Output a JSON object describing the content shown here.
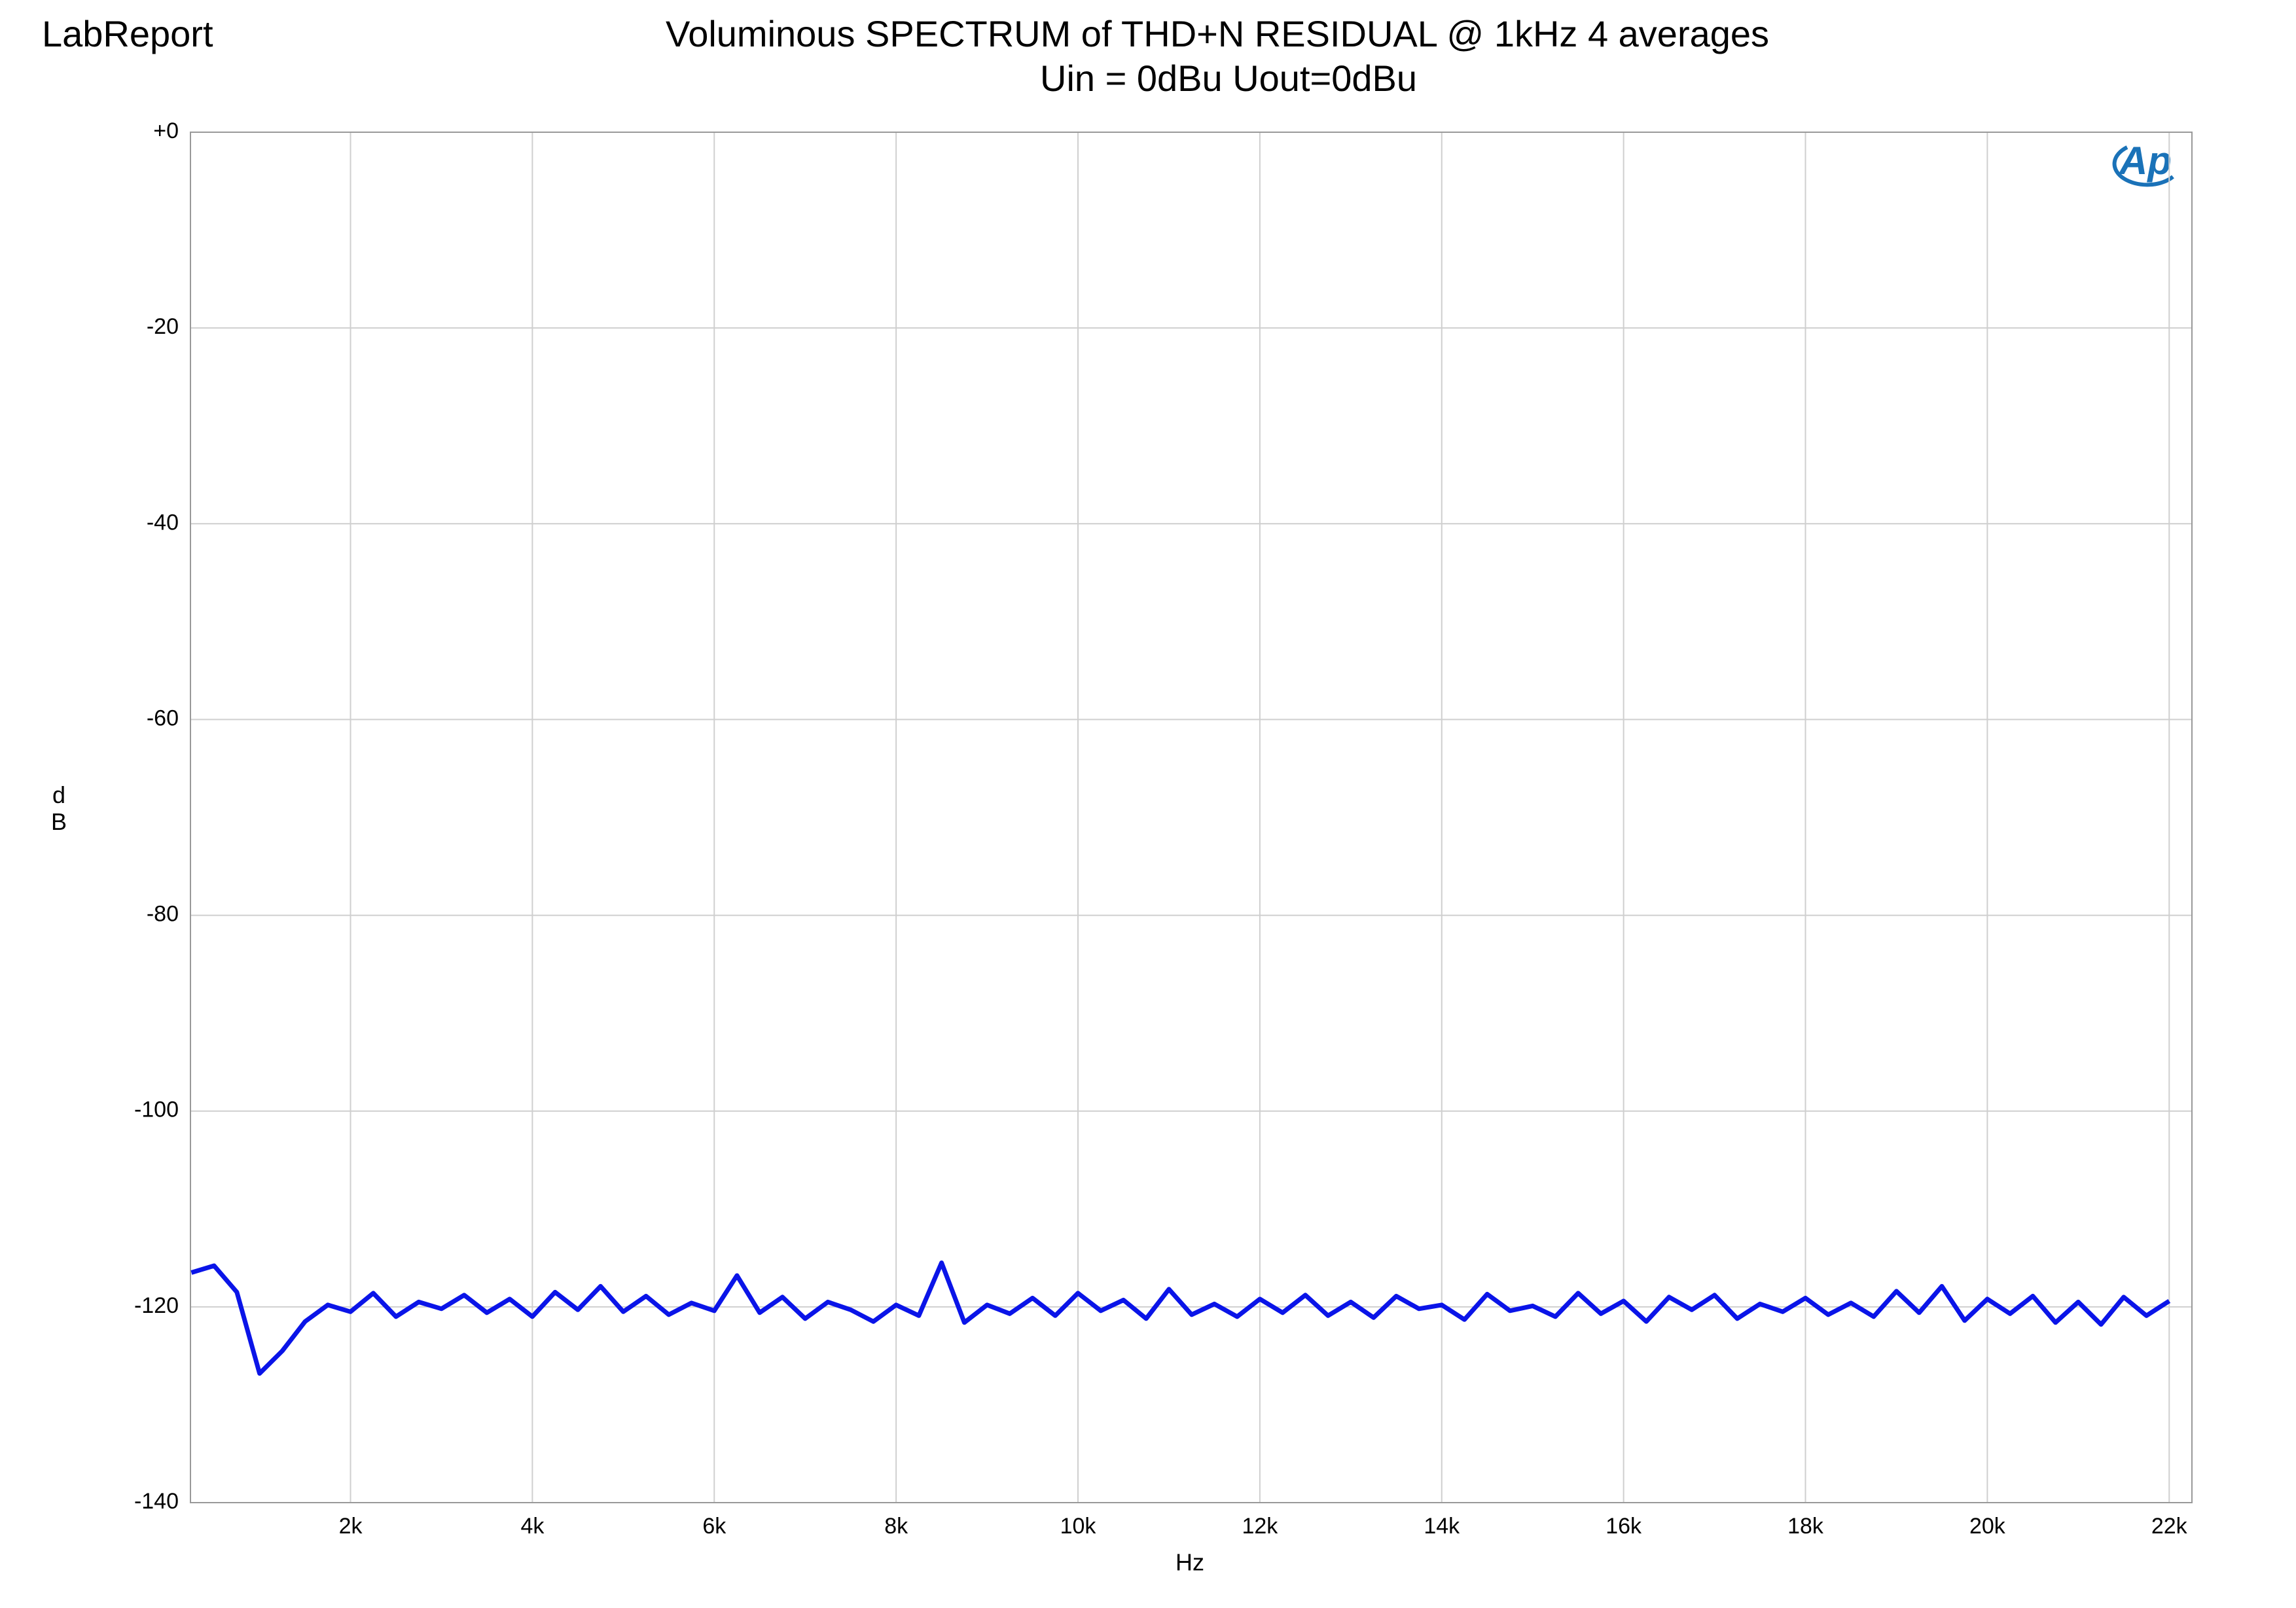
{
  "chart_data": {
    "type": "line",
    "brand": "LabReport",
    "logo": "Ap",
    "title": "Voluminous SPECTRUM of THD+N RESIDUAL  @ 1kHz 4 averages",
    "subtitle": "Uin = 0dBu Uout=0dBu",
    "xlabel": "Hz",
    "ylabel": "dB",
    "xlim": [
      240,
      22250
    ],
    "ylim": [
      -140,
      0
    ],
    "xticks": [
      {
        "value": 2000,
        "label": "2k"
      },
      {
        "value": 4000,
        "label": "4k"
      },
      {
        "value": 6000,
        "label": "6k"
      },
      {
        "value": 8000,
        "label": "8k"
      },
      {
        "value": 10000,
        "label": "10k"
      },
      {
        "value": 12000,
        "label": "12k"
      },
      {
        "value": 14000,
        "label": "14k"
      },
      {
        "value": 16000,
        "label": "16k"
      },
      {
        "value": 18000,
        "label": "18k"
      },
      {
        "value": 20000,
        "label": "20k"
      },
      {
        "value": 22000,
        "label": "22k"
      }
    ],
    "yticks": [
      {
        "value": 0,
        "label": "+0"
      },
      -20,
      -40,
      -60,
      -80,
      -100,
      -120,
      -140
    ],
    "grid": true,
    "x": [
      250,
      500,
      750,
      1000,
      1250,
      1500,
      1750,
      2000,
      2250,
      2500,
      2750,
      3000,
      3250,
      3500,
      3750,
      4000,
      4250,
      4500,
      4750,
      5000,
      5250,
      5500,
      5750,
      6000,
      6250,
      6500,
      6750,
      7000,
      7250,
      7500,
      7750,
      8000,
      8250,
      8500,
      8750,
      9000,
      9250,
      9500,
      9750,
      10000,
      10250,
      10500,
      10750,
      11000,
      11250,
      11500,
      11750,
      12000,
      12250,
      12500,
      12750,
      13000,
      13250,
      13500,
      13750,
      14000,
      14250,
      14500,
      14750,
      15000,
      15250,
      15500,
      15750,
      16000,
      16250,
      16500,
      16750,
      17000,
      17250,
      17500,
      17750,
      18000,
      18250,
      18500,
      18750,
      19000,
      19250,
      19500,
      19750,
      20000,
      20250,
      20500,
      20750,
      21000,
      21250,
      21500,
      21750,
      22000
    ],
    "series": [
      {
        "name": "THD+N residual",
        "color": "#0a14e8",
        "values": [
          -116.5,
          -115.8,
          -118.5,
          -126.8,
          -124.5,
          -121.5,
          -119.8,
          -120.5,
          -118.6,
          -121.0,
          -119.5,
          -120.2,
          -118.8,
          -120.6,
          -119.2,
          -121.0,
          -118.5,
          -120.3,
          -117.9,
          -120.5,
          -118.9,
          -120.8,
          -119.6,
          -120.4,
          -116.8,
          -120.6,
          -119.0,
          -121.2,
          -119.5,
          -120.3,
          -121.5,
          -119.8,
          -120.9,
          -115.5,
          -121.6,
          -119.8,
          -120.7,
          -119.1,
          -120.9,
          -118.6,
          -120.4,
          -119.3,
          -121.2,
          -118.2,
          -120.8,
          -119.7,
          -121.0,
          -119.2,
          -120.6,
          -118.8,
          -120.9,
          -119.5,
          -121.1,
          -118.9,
          -120.2,
          -119.8,
          -121.3,
          -118.7,
          -120.4,
          -119.9,
          -121.0,
          -118.6,
          -120.7,
          -119.4,
          -121.5,
          -119.0,
          -120.3,
          -118.8,
          -121.2,
          -119.7,
          -120.5,
          -119.1,
          -120.8,
          -119.6,
          -121.0,
          -118.4,
          -120.6,
          -117.9,
          -121.4,
          -119.2,
          -120.7,
          -118.9,
          -121.6,
          -119.5,
          -121.8,
          -119.0,
          -120.9,
          -119.4
        ]
      }
    ]
  }
}
